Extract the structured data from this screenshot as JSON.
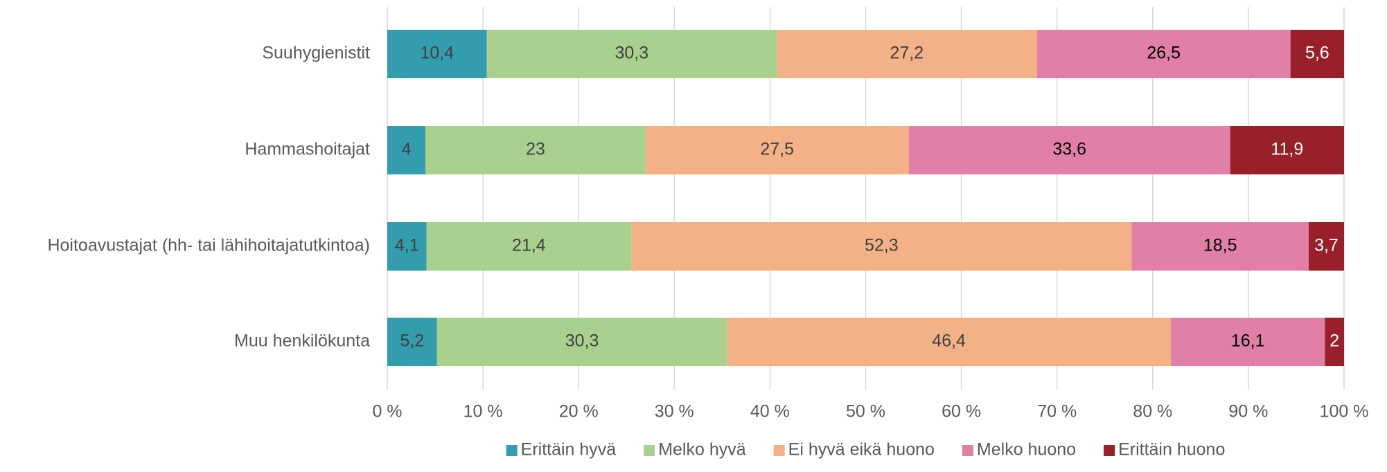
{
  "chart_data": {
    "type": "stacked_barh",
    "categories": [
      "Suuhygienistit",
      "Hammashoitajat",
      "Hoitoavustajat (hh- tai lähihoitajatutkintoa)",
      "Muu henkilökunta"
    ],
    "series": [
      {
        "name": "Erittäin hyvä",
        "color": "#339dae",
        "label_color": "#404040",
        "values": [
          10.4,
          4,
          4.1,
          5.2
        ],
        "value_labels": [
          "10,4",
          "4",
          "4,1",
          "5,2"
        ]
      },
      {
        "name": "Melko hyvä",
        "color": "#a9d08e",
        "label_color": "#404040",
        "values": [
          30.3,
          23,
          21.4,
          30.3
        ],
        "value_labels": [
          "30,3",
          "23",
          "21,4",
          "30,3"
        ]
      },
      {
        "name": "Ei hyvä eikä huono",
        "color": "#f2b187",
        "label_color": "#404040",
        "values": [
          27.2,
          27.5,
          52.3,
          46.4
        ],
        "value_labels": [
          "27,2",
          "27,5",
          "52,3",
          "46,4"
        ]
      },
      {
        "name": "Melko huono",
        "color": "#e07fa8",
        "label_color": "#000000",
        "values": [
          26.5,
          33.6,
          18.5,
          16.1
        ],
        "value_labels": [
          "26,5",
          "33,6",
          "18,5",
          "16,1"
        ]
      },
      {
        "name": "Erittäin huono",
        "color": "#99202a",
        "label_color": "#ffffff",
        "values": [
          5.6,
          11.9,
          3.7,
          2
        ],
        "value_labels": [
          "5,6",
          "11,9",
          "3,7",
          "2"
        ]
      }
    ],
    "xlim": [
      0,
      100
    ],
    "xticks": [
      {
        "value": 0,
        "label": "0 %"
      },
      {
        "value": 10,
        "label": "10 %"
      },
      {
        "value": 20,
        "label": "20 %"
      },
      {
        "value": 30,
        "label": "30 %"
      },
      {
        "value": 40,
        "label": "40 %"
      },
      {
        "value": 50,
        "label": "50 %"
      },
      {
        "value": 60,
        "label": "60 %"
      },
      {
        "value": 70,
        "label": "70 %"
      },
      {
        "value": 80,
        "label": "80 %"
      },
      {
        "value": 90,
        "label": "90 %"
      },
      {
        "value": 100,
        "label": "100 %"
      }
    ],
    "grid": true,
    "legend": "bottom"
  }
}
